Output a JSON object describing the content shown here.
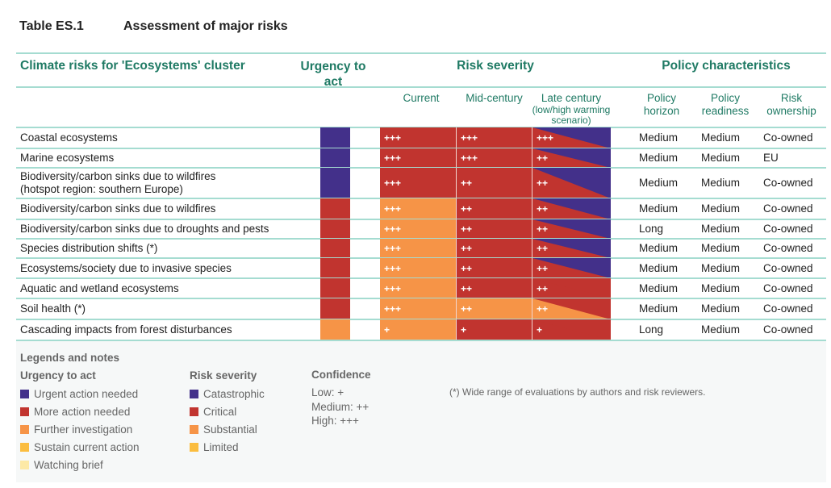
{
  "title": {
    "label": "Table ES.1",
    "text": "Assessment of major risks"
  },
  "headers": {
    "risks": "Climate risks for 'Ecosystems' cluster",
    "urgency": "Urgency to act",
    "severity": "Risk severity",
    "policy": "Policy characteristics",
    "current": "Current",
    "mid": "Mid-century",
    "late": "Late century",
    "late_note": "(low/high warming scenario)",
    "horizon": "Policy horizon",
    "readiness": "Policy readiness",
    "ownership": "Risk ownership"
  },
  "colors": {
    "catastrophic": "#43308a",
    "critical": "#c1342f",
    "substantial": "#f69447",
    "limited": "#fbbd3f",
    "watching": "#fde9a6",
    "accent": "#1f7a64",
    "rule": "#a5dcd1"
  },
  "rows": [
    {
      "label": "Coastal ecosystems",
      "urgency": "catastrophic",
      "current": [
        "critical",
        "+++"
      ],
      "mid": [
        "critical",
        "+++"
      ],
      "late": [
        "critical",
        "catastrophic",
        "+++"
      ],
      "horizon": "Medium",
      "readiness": "Medium",
      "ownership": "Co-owned"
    },
    {
      "label": "Marine ecosystems",
      "urgency": "catastrophic",
      "current": [
        "critical",
        "+++"
      ],
      "mid": [
        "critical",
        "+++"
      ],
      "late": [
        "critical",
        "catastrophic",
        "++"
      ],
      "horizon": "Medium",
      "readiness": "Medium",
      "ownership": "EU"
    },
    {
      "label": "Biodiversity/carbon sinks due to wildfires\n(hotspot region: southern Europe)",
      "urgency": "catastrophic",
      "current": [
        "critical",
        "+++"
      ],
      "mid": [
        "critical",
        "++"
      ],
      "late": [
        "critical",
        "catastrophic",
        "++"
      ],
      "horizon": "Medium",
      "readiness": "Medium",
      "ownership": "Co-owned"
    },
    {
      "label": "Biodiversity/carbon sinks due to wildfires",
      "urgency": "critical",
      "current": [
        "substantial",
        "+++"
      ],
      "mid": [
        "critical",
        "++"
      ],
      "late": [
        "critical",
        "catastrophic",
        "++"
      ],
      "horizon": "Medium",
      "readiness": "Medium",
      "ownership": "Co-owned"
    },
    {
      "label": "Biodiversity/carbon sinks due to droughts and pests",
      "urgency": "critical",
      "current": [
        "substantial",
        "+++"
      ],
      "mid": [
        "critical",
        "++"
      ],
      "late": [
        "critical",
        "catastrophic",
        "++"
      ],
      "horizon": "Long",
      "readiness": "Medium",
      "ownership": "Co-owned"
    },
    {
      "label": "Species distribution shifts (*)",
      "urgency": "critical",
      "current": [
        "substantial",
        "+++"
      ],
      "mid": [
        "critical",
        "++"
      ],
      "late": [
        "critical",
        "catastrophic",
        "++"
      ],
      "horizon": "Medium",
      "readiness": "Medium",
      "ownership": "Co-owned"
    },
    {
      "label": "Ecosystems/society due to invasive species",
      "urgency": "critical",
      "current": [
        "substantial",
        "+++"
      ],
      "mid": [
        "critical",
        "++"
      ],
      "late": [
        "critical",
        "catastrophic",
        "++"
      ],
      "horizon": "Medium",
      "readiness": "Medium",
      "ownership": "Co-owned"
    },
    {
      "label": "Aquatic and wetland ecosystems",
      "urgency": "critical",
      "current": [
        "substantial",
        "+++"
      ],
      "mid": [
        "critical",
        "++"
      ],
      "late": [
        "critical",
        "critical",
        "++"
      ],
      "horizon": "Medium",
      "readiness": "Medium",
      "ownership": "Co-owned"
    },
    {
      "label": "Soil health (*)",
      "urgency": "critical",
      "current": [
        "substantial",
        "+++"
      ],
      "mid": [
        "substantial",
        "++"
      ],
      "late": [
        "substantial",
        "critical",
        "++"
      ],
      "horizon": "Medium",
      "readiness": "Medium",
      "ownership": "Co-owned"
    },
    {
      "label": "Cascading impacts from forest disturbances",
      "urgency": "substantial",
      "current": [
        "substantial",
        "+"
      ],
      "mid": [
        "critical",
        "+"
      ],
      "late": [
        "critical",
        "critical",
        "+"
      ],
      "horizon": "Long",
      "readiness": "Medium",
      "ownership": "Co-owned"
    }
  ],
  "legend": {
    "title": "Legends and notes",
    "urgency": {
      "title": "Urgency to act",
      "items": [
        {
          "label": "Urgent action needed",
          "color": "#43308a"
        },
        {
          "label": "More action needed",
          "color": "#c1342f"
        },
        {
          "label": "Further investigation",
          "color": "#f69447"
        },
        {
          "label": "Sustain current action",
          "color": "#fbbd3f"
        },
        {
          "label": "Watching brief",
          "color": "#fde9a6"
        }
      ]
    },
    "severity": {
      "title": "Risk severity",
      "items": [
        {
          "label": "Catastrophic",
          "color": "#43308a"
        },
        {
          "label": "Critical",
          "color": "#c1342f"
        },
        {
          "label": "Substantial",
          "color": "#f69447"
        },
        {
          "label": "Limited",
          "color": "#fbbd3f"
        }
      ]
    },
    "confidence": {
      "title": "Confidence",
      "items": [
        "Low: +",
        "Medium: ++",
        "High: +++"
      ]
    },
    "note": "(*) Wide range of evaluations by authors and risk reviewers."
  }
}
